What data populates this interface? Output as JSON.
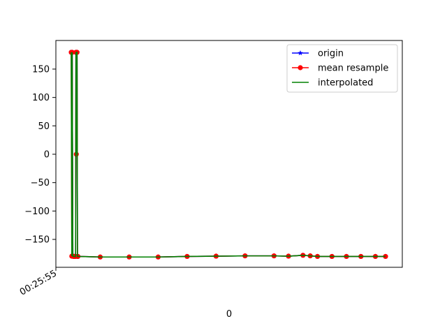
{
  "chart_data": {
    "type": "line",
    "title": "",
    "xlabel": "0",
    "ylabel": "",
    "x_tick_labels": [
      "00:25:55"
    ],
    "y_ticks": [
      150,
      100,
      50,
      0,
      -50,
      -100,
      -150
    ],
    "y_tick_labels": [
      "150",
      "100",
      "50",
      "0",
      "−50",
      "−100",
      "−150"
    ],
    "ylim": [
      -190,
      190
    ],
    "legend_position": "upper right",
    "grid": false,
    "series": [
      {
        "name": "origin",
        "color": "#0000ff",
        "marker": "star",
        "points": [
          [
            0,
            179.5
          ],
          [
            1.3,
            179.5
          ],
          [
            2.2,
            -179.5
          ],
          [
            3,
            -180
          ],
          [
            4,
            -180
          ],
          [
            5,
            -180
          ],
          [
            6,
            -180
          ],
          [
            6.5,
            179.5
          ],
          [
            7,
            0
          ],
          [
            7.4,
            179.5
          ],
          [
            8,
            179.5
          ],
          [
            8.6,
            -180
          ],
          [
            9.2,
            -180
          ],
          [
            40,
            -181
          ],
          [
            80,
            -181
          ],
          [
            120,
            -181
          ],
          [
            160,
            -180
          ],
          [
            200,
            -179.5
          ],
          [
            240,
            -179
          ],
          [
            280,
            -179
          ],
          [
            300,
            -179.5
          ],
          [
            320,
            -178
          ],
          [
            330,
            -179
          ],
          [
            340,
            -180
          ],
          [
            360,
            -180
          ],
          [
            380,
            -180
          ],
          [
            400,
            -180
          ],
          [
            420,
            -180
          ],
          [
            434,
            -180
          ]
        ]
      },
      {
        "name": "mean resample",
        "color": "#ff0000",
        "marker": "circle",
        "points": [
          [
            0,
            179.5
          ],
          [
            0.8,
            -179.5
          ],
          [
            1.3,
            179.5
          ],
          [
            2.2,
            -179.5
          ],
          [
            3,
            -180
          ],
          [
            4,
            -180
          ],
          [
            5,
            -180
          ],
          [
            6,
            -180
          ],
          [
            6.5,
            179.5
          ],
          [
            7,
            0
          ],
          [
            7.4,
            179.5
          ],
          [
            8,
            179.5
          ],
          [
            8.6,
            -180
          ],
          [
            9.2,
            -180
          ],
          [
            40,
            -181
          ],
          [
            80,
            -181
          ],
          [
            120,
            -181
          ],
          [
            160,
            -180
          ],
          [
            200,
            -179.5
          ],
          [
            240,
            -179
          ],
          [
            280,
            -179
          ],
          [
            300,
            -179.5
          ],
          [
            320,
            -178
          ],
          [
            330,
            -179
          ],
          [
            340,
            -180
          ],
          [
            360,
            -180
          ],
          [
            380,
            -180
          ],
          [
            400,
            -180
          ],
          [
            420,
            -180
          ],
          [
            434,
            -180
          ]
        ]
      },
      {
        "name": "interpolated",
        "color": "#008000",
        "marker": "none",
        "points": [
          [
            0,
            179.5
          ],
          [
            0.8,
            -179.5
          ],
          [
            1.3,
            179.5
          ],
          [
            2.2,
            -179.5
          ],
          [
            3,
            -180
          ],
          [
            4,
            -180
          ],
          [
            5,
            -180
          ],
          [
            6,
            -180
          ],
          [
            6.5,
            179.5
          ],
          [
            7,
            0
          ],
          [
            7.4,
            179.5
          ],
          [
            8,
            179.5
          ],
          [
            8.6,
            -180
          ],
          [
            9.2,
            -180
          ],
          [
            40,
            -181
          ],
          [
            80,
            -181
          ],
          [
            120,
            -181
          ],
          [
            160,
            -180
          ],
          [
            200,
            -179.5
          ],
          [
            240,
            -179
          ],
          [
            280,
            -179
          ],
          [
            300,
            -179.5
          ],
          [
            320,
            -178
          ],
          [
            330,
            -179
          ],
          [
            340,
            -180
          ],
          [
            360,
            -180
          ],
          [
            380,
            -180
          ],
          [
            400,
            -180
          ],
          [
            420,
            -180
          ],
          [
            434,
            -180
          ]
        ]
      }
    ]
  }
}
